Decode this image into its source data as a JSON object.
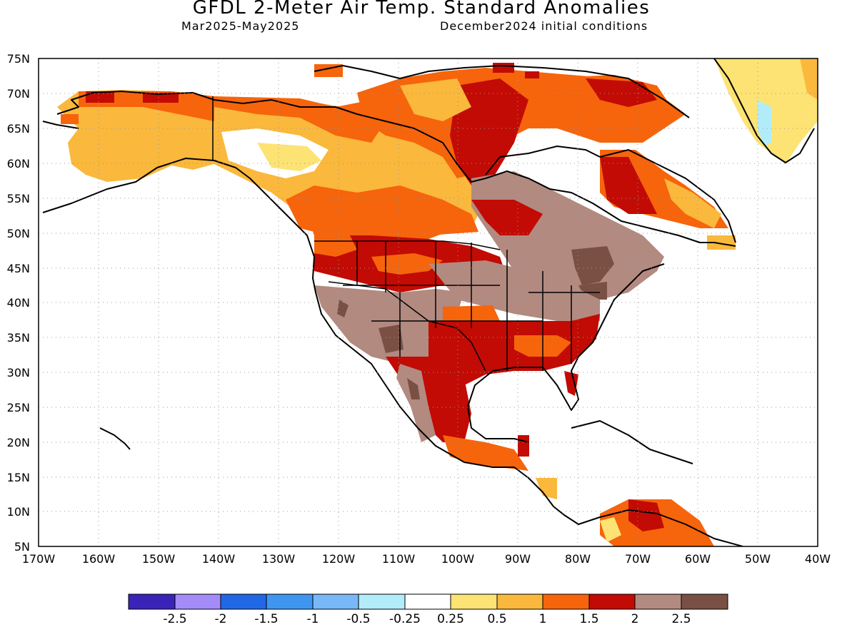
{
  "title": "GFDL 2-Meter Air Temp. Standard Anomalies",
  "subtitle_left": "Mar2025-May2025",
  "subtitle_right": "December2024 initial conditions",
  "lat_labels": [
    "75N",
    "70N",
    "65N",
    "60N",
    "55N",
    "50N",
    "45N",
    "40N",
    "35N",
    "30N",
    "25N",
    "20N",
    "15N",
    "10N",
    "5N"
  ],
  "lon_labels": [
    "170W",
    "160W",
    "150W",
    "140W",
    "130W",
    "120W",
    "110W",
    "100W",
    "90W",
    "80W",
    "70W",
    "60W",
    "50W",
    "40W"
  ],
  "colorbar": {
    "colors": [
      "#3a23b8",
      "#a38cf8",
      "#2168e6",
      "#3f96f0",
      "#78b8f6",
      "#b2ecf8",
      "#ffffff",
      "#fde374",
      "#fab83c",
      "#f6640c",
      "#c20b04",
      "#b28a80",
      "#7a5044"
    ],
    "labels": [
      "-2.5",
      "-2",
      "-1.5",
      "-1",
      "-0.5",
      "-0.25",
      "0.25",
      "0.5",
      "1",
      "1.5",
      "2",
      "2.5"
    ]
  }
}
